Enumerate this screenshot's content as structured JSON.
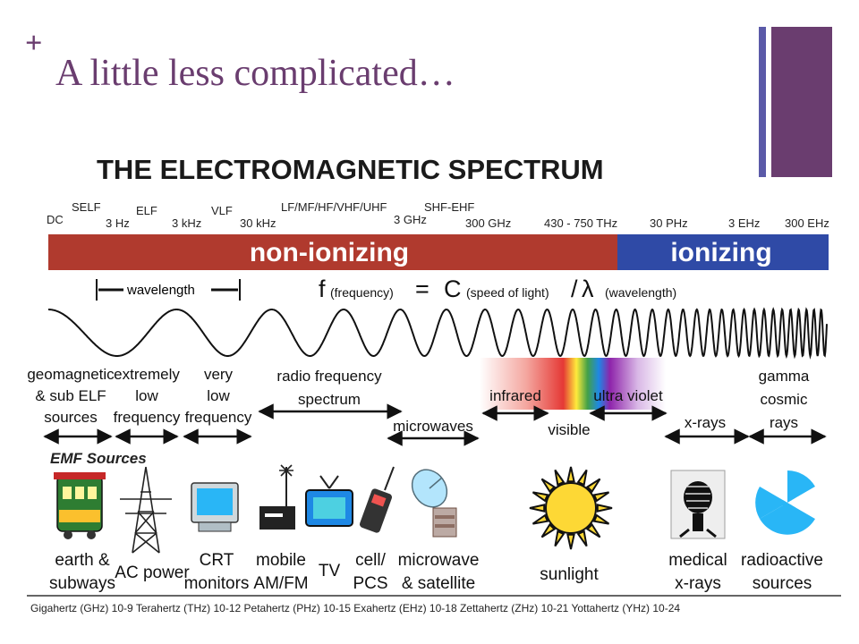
{
  "slide": {
    "title": "A little less complicated…",
    "plus": "+",
    "accent_color": "#6a3d6f",
    "bar_color": "#6a3d6f",
    "thin_bar_color": "#5b5aa8"
  },
  "diagram": {
    "heading": "THE ELECTROMAGNETIC SPECTRUM",
    "band_names": [
      "DC",
      "SELF",
      "ELF",
      "VLF",
      "LF/MF/HF/VHF/UHF",
      "SHF-EHF"
    ],
    "frequencies": [
      "3 Hz",
      "3 kHz",
      "30 kHz",
      "3 GHz",
      "300 GHz",
      "430 - 750 THz",
      "30 PHz",
      "3 EHz",
      "300 EHz"
    ],
    "bands": {
      "non_ionizing": "non-ionizing",
      "ionizing": "ionizing",
      "non_ionizing_color": "#b03a2e",
      "ionizing_color": "#2f4aa6"
    },
    "wavelength_label": "wavelength",
    "formula": {
      "f": "f",
      "f_sub": "(frequency)",
      "eq": "=",
      "c": "C",
      "c_sub": "(speed of light)",
      "slash": "/",
      "lambda": "λ",
      "lambda_sub": "(wavelength)"
    },
    "categories": {
      "geomagnetic": [
        "geomagnetic",
        "& sub ELF",
        "sources"
      ],
      "extremely_low": [
        "extremely",
        "low",
        "frequency"
      ],
      "very_low": [
        "very",
        "low",
        "frequency"
      ],
      "radio_frequency": [
        "radio frequency",
        "spectrum"
      ],
      "microwaves": "microwaves",
      "infrared": "infrared",
      "visible": "visible",
      "ultra_violet": "ultra violet",
      "x_rays": "x-rays",
      "gamma": [
        "gamma",
        "cosmic",
        "rays"
      ]
    },
    "emf_sources_label": "EMF Sources",
    "sources": {
      "earth": [
        "earth &",
        "subways"
      ],
      "ac_power": [
        "AC power"
      ],
      "crt": [
        "CRT",
        "monitors"
      ],
      "mobile": [
        "mobile",
        "AM/FM"
      ],
      "tv": [
        "TV"
      ],
      "cell": [
        "cell/",
        "PCS"
      ],
      "microwave": [
        "microwave",
        "& satellite"
      ],
      "sunlight": [
        "sunlight"
      ],
      "medical": [
        "medical",
        "x-rays"
      ],
      "radioactive": [
        "radioactive",
        "sources"
      ]
    },
    "icons": [
      "trolley-icon",
      "power-tower-icon",
      "crt-monitor-icon",
      "radio-icon",
      "tv-icon",
      "cell-phone-icon",
      "satellite-dish-icon",
      "sun-icon",
      "xray-icon",
      "radiation-icon"
    ],
    "footer": "Gigahertz (GHz) 10-9   Terahertz (THz) 10-12   Petahertz (PHz) 10-15   Exahertz (EHz) 10-18   Zettahertz (ZHz) 10-21   Yottahertz (YHz) 10-24"
  }
}
